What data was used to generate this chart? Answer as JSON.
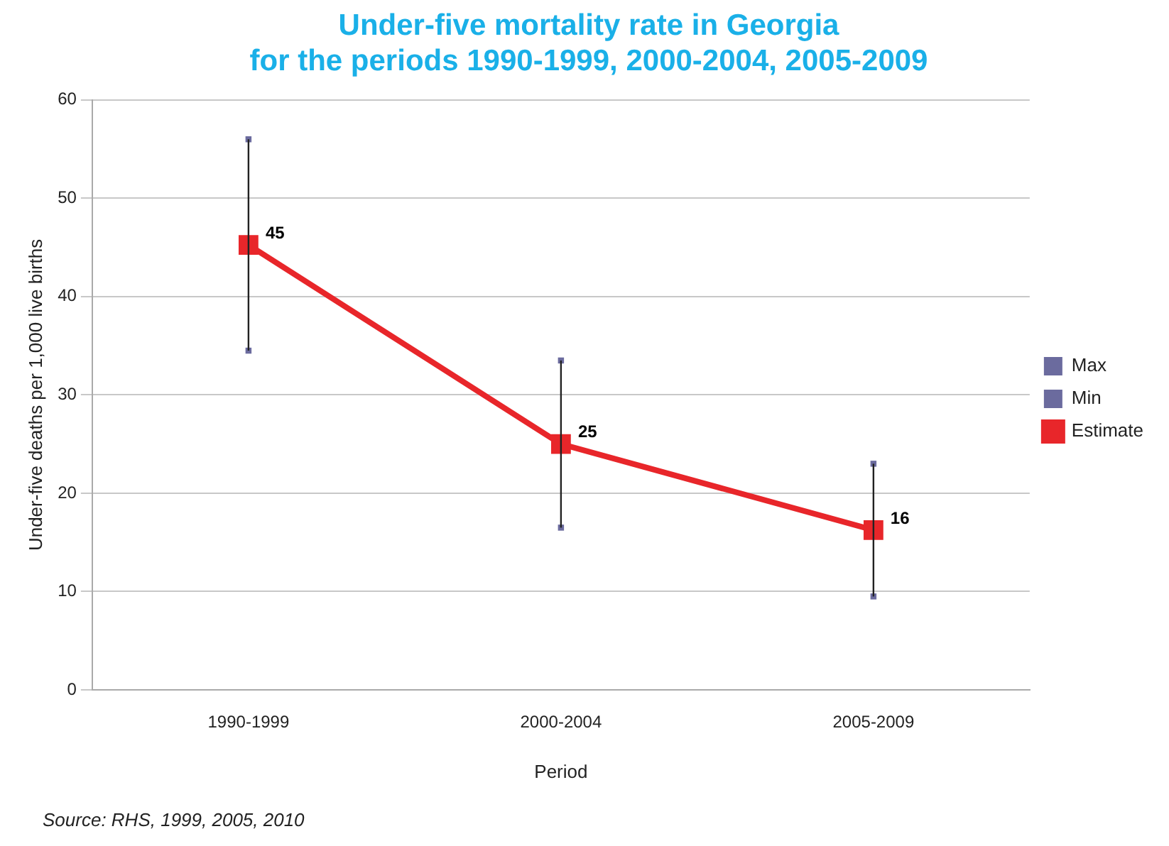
{
  "chart_data": {
    "type": "line",
    "title": "Under-five mortality rate in Georgia\nfor the periods 1990-1999, 2000-2004, 2005-2009",
    "xlabel": "Period",
    "ylabel": "Under-five deaths per 1,000 live births",
    "categories": [
      "1990-1999",
      "2000-2004",
      "2005-2009"
    ],
    "series": [
      {
        "name": "Max",
        "type": "scatter",
        "color": "#6b6b9e",
        "marker": "square",
        "values": [
          56,
          33.5,
          23
        ]
      },
      {
        "name": "Min",
        "type": "scatter",
        "color": "#6b6b9e",
        "marker": "square",
        "values": [
          34.5,
          16.5,
          9.5
        ]
      },
      {
        "name": "Estimate",
        "type": "line",
        "color": "#e8262a",
        "marker": "square",
        "line_style": "solid",
        "values": [
          45.25,
          25,
          16.25
        ],
        "value_labels": [
          "45",
          "25",
          "16"
        ],
        "errors": [
          [
            10.75,
            10.75
          ],
          [
            8.5,
            8.5
          ],
          [
            6.75,
            6.75
          ]
        ]
      }
    ],
    "ylim": [
      0,
      60
    ],
    "yticks": [
      0,
      10,
      20,
      30,
      40,
      50,
      60
    ],
    "grid": "y",
    "legend": "right",
    "annotations": [
      "Source: RHS, 1999, 2005, 2010"
    ]
  }
}
